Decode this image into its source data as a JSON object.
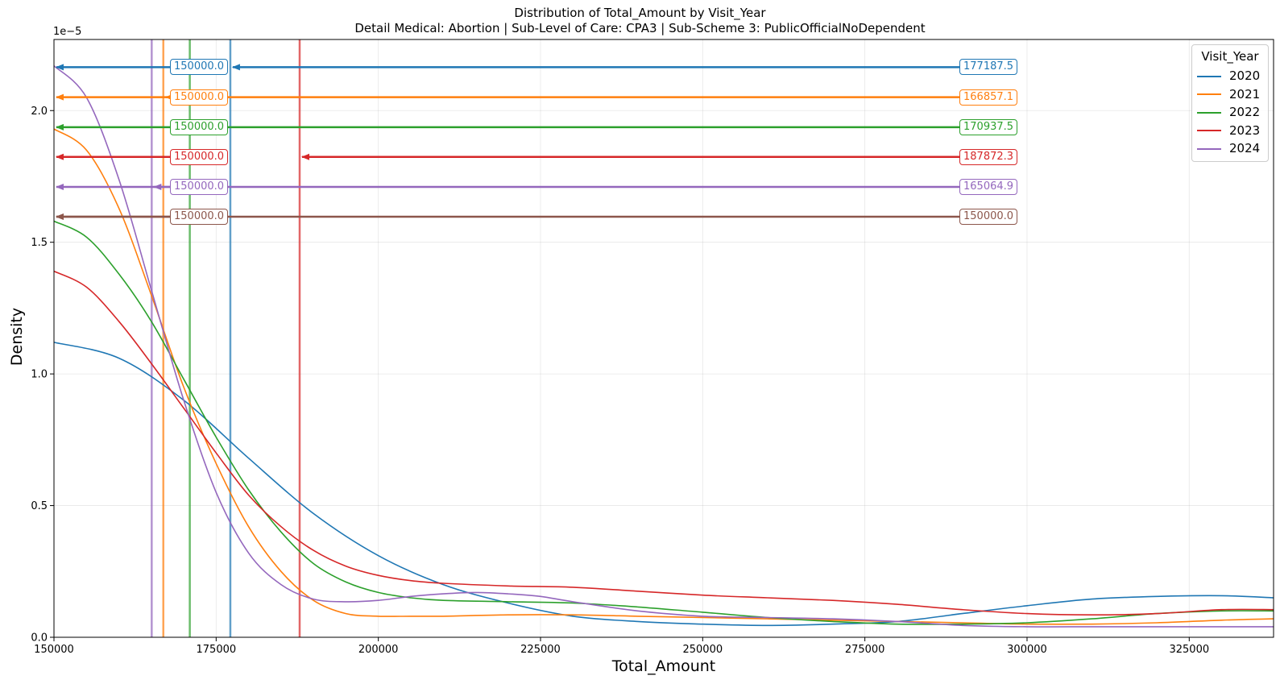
{
  "chart_data": {
    "type": "line",
    "title": "Distribution of Total_Amount by Visit_Year",
    "subtitle": "Detail Medical: Abortion | Sub-Level of Care: CPA3 | Sub-Scheme 3: PublicOfficialNoDependent",
    "xlabel": "Total_Amount",
    "ylabel": "Density",
    "y_offset_label": "1e−5",
    "xlim": [
      150000,
      338000
    ],
    "ylim": [
      0,
      2.27
    ],
    "y_scale_factor": 1e-05,
    "x_ticks": [
      150000,
      175000,
      200000,
      225000,
      250000,
      275000,
      300000,
      325000
    ],
    "x_tick_labels": [
      "150000",
      "175000",
      "200000",
      "225000",
      "250000",
      "275000",
      "300000",
      "325000"
    ],
    "y_ticks": [
      0,
      0.5,
      1.0,
      1.5,
      2.0
    ],
    "y_tick_labels": [
      "0.0",
      "0.5",
      "1.0",
      "1.5",
      "2.0"
    ],
    "grid": true,
    "legend": {
      "title": "Visit_Year",
      "position": "top-right"
    },
    "series": [
      {
        "name": "2020",
        "color": "#1f77b4",
        "x": [
          150000,
          160000,
          170000,
          180000,
          190000,
          200000,
          210000,
          220000,
          230000,
          240000,
          250000,
          260000,
          270000,
          280000,
          290000,
          300000,
          310000,
          320000,
          330000,
          338000
        ],
        "y": [
          1.12,
          1.06,
          0.9,
          0.68,
          0.47,
          0.31,
          0.2,
          0.13,
          0.08,
          0.06,
          0.05,
          0.045,
          0.05,
          0.06,
          0.09,
          0.12,
          0.145,
          0.155,
          0.158,
          0.15
        ]
      },
      {
        "name": "2021",
        "color": "#ff7f0e",
        "x": [
          150000,
          155000,
          160000,
          165000,
          170000,
          175000,
          180000,
          185000,
          190000,
          195000,
          200000,
          205000,
          210000,
          220000,
          230000,
          240000,
          250000,
          260000,
          270000,
          280000,
          290000,
          300000,
          310000,
          320000,
          330000,
          338000
        ],
        "y": [
          1.93,
          1.85,
          1.63,
          1.3,
          0.95,
          0.66,
          0.42,
          0.25,
          0.14,
          0.09,
          0.08,
          0.08,
          0.08,
          0.085,
          0.085,
          0.08,
          0.075,
          0.07,
          0.065,
          0.06,
          0.055,
          0.05,
          0.05,
          0.055,
          0.065,
          0.07
        ]
      },
      {
        "name": "2022",
        "color": "#2ca02c",
        "x": [
          150000,
          155000,
          160000,
          165000,
          170000,
          175000,
          180000,
          185000,
          190000,
          195000,
          200000,
          205000,
          210000,
          220000,
          230000,
          240000,
          250000,
          260000,
          270000,
          280000,
          290000,
          300000,
          310000,
          320000,
          330000,
          338000
        ],
        "y": [
          1.58,
          1.52,
          1.38,
          1.2,
          0.98,
          0.76,
          0.56,
          0.4,
          0.28,
          0.21,
          0.17,
          0.15,
          0.14,
          0.135,
          0.13,
          0.115,
          0.095,
          0.075,
          0.06,
          0.05,
          0.05,
          0.055,
          0.07,
          0.09,
          0.1,
          0.1
        ]
      },
      {
        "name": "2023",
        "color": "#d62728",
        "x": [
          150000,
          155000,
          160000,
          165000,
          170000,
          175000,
          180000,
          185000,
          190000,
          195000,
          200000,
          205000,
          210000,
          220000,
          230000,
          240000,
          250000,
          260000,
          270000,
          280000,
          290000,
          300000,
          310000,
          320000,
          330000,
          338000
        ],
        "y": [
          1.39,
          1.33,
          1.2,
          1.04,
          0.87,
          0.7,
          0.54,
          0.42,
          0.33,
          0.27,
          0.235,
          0.215,
          0.205,
          0.195,
          0.19,
          0.175,
          0.16,
          0.15,
          0.14,
          0.125,
          0.105,
          0.09,
          0.085,
          0.09,
          0.105,
          0.105
        ]
      },
      {
        "name": "2024",
        "color": "#9467bd",
        "x": [
          150000,
          155000,
          160000,
          165000,
          170000,
          175000,
          180000,
          185000,
          190000,
          195000,
          200000,
          205000,
          210000,
          215000,
          220000,
          225000,
          230000,
          240000,
          250000,
          260000,
          270000,
          280000,
          290000,
          300000,
          310000,
          320000,
          330000,
          338000
        ],
        "y": [
          2.17,
          2.05,
          1.74,
          1.32,
          0.9,
          0.55,
          0.32,
          0.2,
          0.145,
          0.135,
          0.14,
          0.155,
          0.165,
          0.17,
          0.165,
          0.155,
          0.135,
          0.1,
          0.08,
          0.075,
          0.07,
          0.06,
          0.045,
          0.04,
          0.04,
          0.04,
          0.04,
          0.04
        ]
      }
    ],
    "vertical_lines": [
      {
        "series": "2020",
        "x": 177187.5,
        "color": "#1f77b4"
      },
      {
        "series": "2021",
        "x": 166857.1,
        "color": "#ff7f0e"
      },
      {
        "series": "2022",
        "x": 170937.5,
        "color": "#2ca02c"
      },
      {
        "series": "2023",
        "x": 187872.3,
        "color": "#d62728"
      },
      {
        "series": "2024",
        "x": 165064.9,
        "color": "#9467bd"
      }
    ],
    "annotations": [
      {
        "y": 2.165,
        "color": "#1f77b4",
        "left_label": "150000.0",
        "right_label": "177187.5",
        "right_target_x": 177187.5
      },
      {
        "y": 2.051,
        "color": "#ff7f0e",
        "left_label": "150000.0",
        "right_label": "166857.1",
        "right_target_x": 166857.1
      },
      {
        "y": 1.937,
        "color": "#2ca02c",
        "left_label": "150000.0",
        "right_label": "170937.5",
        "right_target_x": 170937.5
      },
      {
        "y": 1.824,
        "color": "#d62728",
        "left_label": "150000.0",
        "right_label": "187872.3",
        "right_target_x": 187872.3
      },
      {
        "y": 1.71,
        "color": "#9467bd",
        "left_label": "150000.0",
        "right_label": "165064.9",
        "right_target_x": 165064.9
      },
      {
        "y": 1.597,
        "color": "#8c564b",
        "left_label": "150000.0",
        "right_label": "150000.0",
        "right_target_x": 150000.0
      }
    ]
  }
}
